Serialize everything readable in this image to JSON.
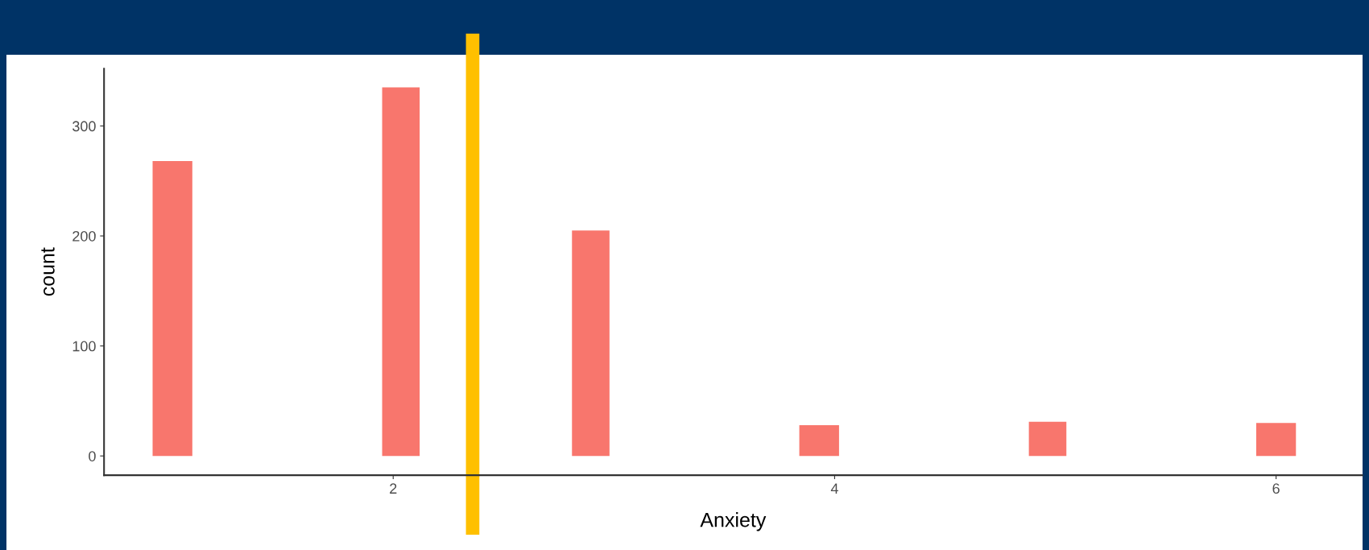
{
  "chart_data": {
    "type": "histogram",
    "xlabel": "Anxiety",
    "ylabel": "count",
    "color": "#f8766d",
    "bins": [
      0.91,
      1.09,
      1.95,
      2.12,
      2.81,
      2.98,
      3.84,
      4.02,
      4.88,
      5.05,
      5.91,
      6.09
    ],
    "values": [
      268,
      0,
      335,
      0,
      205,
      0,
      28,
      0,
      31,
      0,
      30
    ],
    "xlim": [
      0.69,
      6.39
    ],
    "xticks": [
      2,
      4,
      6
    ],
    "ylim": [
      -17.5,
      352
    ],
    "yticks": [
      0,
      100,
      200,
      300
    ],
    "grid": false,
    "ref_lines": [
      {
        "axis": "x",
        "value": 2.36,
        "color": "#ffc000"
      }
    ]
  }
}
